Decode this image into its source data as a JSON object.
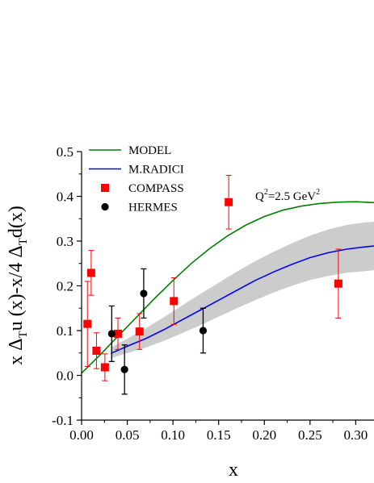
{
  "chart_data": {
    "type": "line",
    "xlabel": "x",
    "ylabel_parts": {
      "a": "x Δ",
      "sub1": "T",
      "b": "u (x)-x/4 Δ",
      "sub2": "T",
      "c": "d(x)"
    },
    "xlim": [
      0.0,
      0.32
    ],
    "ylim": [
      -0.1,
      0.5
    ],
    "x_ticks": [
      "0.00",
      "0.05",
      "0.10",
      "0.15",
      "0.20",
      "0.25",
      "0.30"
    ],
    "x_tick_values": [
      0.0,
      0.05,
      0.1,
      0.15,
      0.2,
      0.25,
      0.3
    ],
    "y_ticks": [
      "-0.1",
      "0.0",
      "0.1",
      "0.2",
      "0.3",
      "0.4",
      "0.5"
    ],
    "y_tick_values": [
      -0.1,
      0.0,
      0.1,
      0.2,
      0.3,
      0.4,
      0.5
    ],
    "annotation": {
      "base": "Q",
      "sup": "2",
      "mid": "=2.5 GeV",
      "sup2": "2",
      "x": 0.205,
      "y": 0.402
    },
    "legend": [
      {
        "label": "MODEL",
        "kind": "line",
        "color": "#008000"
      },
      {
        "label": "M.RADICI",
        "kind": "line",
        "color": "#0000ff"
      },
      {
        "label": "COMPASS",
        "kind": "square",
        "color": "#ff0000"
      },
      {
        "label": "HERMES",
        "kind": "circle",
        "color": "#000000"
      }
    ],
    "series": [
      {
        "name": "MODEL",
        "kind": "line",
        "color": "#008000",
        "x": [
          0.0,
          0.02,
          0.04,
          0.06,
          0.08,
          0.1,
          0.12,
          0.14,
          0.16,
          0.18,
          0.2,
          0.22,
          0.24,
          0.26,
          0.28,
          0.3,
          0.32
        ],
        "y": [
          0.005,
          0.045,
          0.088,
          0.13,
          0.172,
          0.212,
          0.25,
          0.283,
          0.312,
          0.336,
          0.355,
          0.369,
          0.378,
          0.384,
          0.387,
          0.388,
          0.386
        ]
      },
      {
        "name": "M.RADICI",
        "kind": "band-line",
        "color": "#0000ff",
        "band_color": "#cccccc",
        "x": [
          0.032,
          0.05,
          0.07,
          0.09,
          0.11,
          0.13,
          0.15,
          0.17,
          0.19,
          0.21,
          0.23,
          0.25,
          0.27,
          0.29,
          0.31,
          0.32
        ],
        "y": [
          0.049,
          0.065,
          0.082,
          0.102,
          0.124,
          0.146,
          0.168,
          0.19,
          0.212,
          0.231,
          0.248,
          0.263,
          0.274,
          0.282,
          0.287,
          0.289
        ],
        "y_lower": [
          0.038,
          0.05,
          0.062,
          0.077,
          0.094,
          0.112,
          0.131,
          0.15,
          0.168,
          0.185,
          0.2,
          0.213,
          0.222,
          0.229,
          0.233,
          0.235
        ],
        "y_upper": [
          0.062,
          0.082,
          0.105,
          0.13,
          0.156,
          0.182,
          0.207,
          0.232,
          0.255,
          0.276,
          0.295,
          0.312,
          0.326,
          0.336,
          0.342,
          0.343
        ]
      },
      {
        "name": "COMPASS",
        "kind": "points-square",
        "color": "#ff0000",
        "x": [
          0.0064,
          0.0105,
          0.0163,
          0.0255,
          0.0398,
          0.0634,
          0.101,
          0.161,
          0.281
        ],
        "y": [
          0.115,
          0.229,
          0.055,
          0.018,
          0.093,
          0.098,
          0.166,
          0.387,
          0.205
        ],
        "y_err": [
          0.095,
          0.05,
          0.04,
          0.03,
          0.035,
          0.04,
          0.052,
          0.06,
          0.077
        ]
      },
      {
        "name": "HERMES",
        "kind": "points-circle",
        "color": "#000000",
        "x": [
          0.033,
          0.047,
          0.068,
          0.133
        ],
        "y": [
          0.093,
          0.013,
          0.183,
          0.1
        ],
        "y_err": [
          0.062,
          0.055,
          0.055,
          0.05
        ]
      }
    ]
  }
}
